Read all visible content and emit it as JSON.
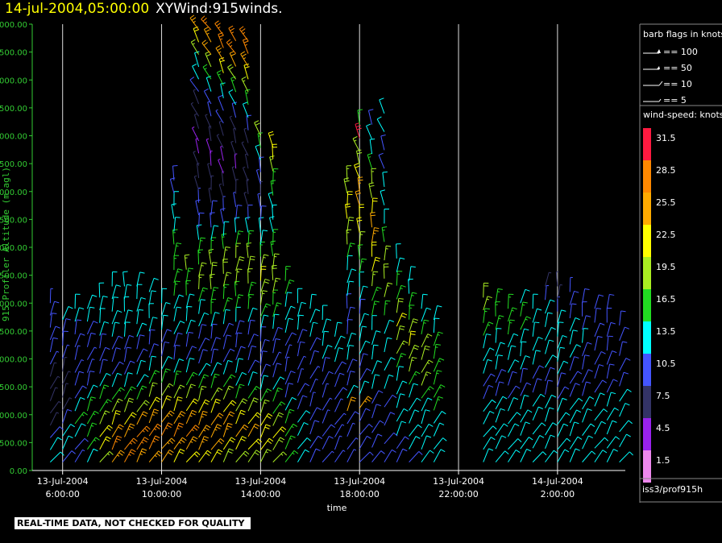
{
  "header": {
    "datetime": "14-jul-2004,05:00:00",
    "product": "XYWind:915winds."
  },
  "colors": {
    "background": "#000000",
    "title_date": "#ffff00",
    "y_axis": "#33cc33",
    "axis": "#ffffff"
  },
  "chart_data": {
    "type": "scatter",
    "subtype": "wind-barbs",
    "xlabel": "time",
    "ylabel": "915 Profiler Altitude (m agl)",
    "ylim": [
      0,
      8000
    ],
    "y_ticks": [
      "0.00",
      "500.00",
      "1000.00",
      "1500.00",
      "2000.00",
      "2500.00",
      "3000.00",
      "3500.00",
      "4000.00",
      "4500.00",
      "5000.00",
      "5500.00",
      "6000.00",
      "6500.00",
      "7000.00",
      "7500.00",
      "8000.00"
    ],
    "x_ticks": [
      {
        "date": "13-Jul-2004",
        "time": "6:00:00"
      },
      {
        "date": "13-Jul-2004",
        "time": "10:00:00"
      },
      {
        "date": "13-Jul-2004",
        "time": "14:00:00"
      },
      {
        "date": "13-Jul-2004",
        "time": "18:00:00"
      },
      {
        "date": "13-Jul-2004",
        "time": "22:00:00"
      },
      {
        "date": "14-Jul-2004",
        "time": "2:00:00"
      }
    ],
    "xlim": [
      "2004-07-13 05:00",
      "2004-07-14 05:00"
    ],
    "vertical_grid_at_ticks": true,
    "wind_columns": [
      {
        "t": "2004-07-13 05:30",
        "top": 3000,
        "speed": [
          12,
          12,
          11,
          6,
          6,
          7,
          7,
          8,
          9,
          10,
          11,
          11,
          10,
          9
        ]
      },
      {
        "t": "2004-07-13 06:00",
        "top": 2700,
        "speed": [
          11,
          12,
          13,
          10,
          8,
          7,
          7,
          8,
          9,
          10,
          11,
          12
        ]
      },
      {
        "t": "2004-07-13 06:30",
        "top": 2900,
        "speed": [
          9,
          11,
          14,
          15,
          13,
          11,
          10,
          9,
          9,
          10,
          11,
          12,
          13
        ]
      },
      {
        "t": "2004-07-13 07:00",
        "top": 2900,
        "speed": [
          13,
          16,
          17,
          17,
          15,
          12,
          10,
          9,
          9,
          10,
          11,
          12,
          12
        ]
      },
      {
        "t": "2004-07-13 07:30",
        "top": 3100,
        "speed": [
          19,
          22,
          21,
          19,
          17,
          15,
          12,
          10,
          10,
          11,
          12,
          12,
          13,
          14
        ]
      },
      {
        "t": "2004-07-13 08:00",
        "top": 3300,
        "speed": [
          25,
          27,
          24,
          22,
          19,
          16,
          13,
          11,
          10,
          11,
          12,
          12,
          13,
          14,
          12
        ]
      },
      {
        "t": "2004-07-13 08:30",
        "top": 3300,
        "speed": [
          27,
          28,
          26,
          23,
          20,
          17,
          14,
          11,
          10,
          11,
          12,
          13,
          13,
          13,
          12
        ]
      },
      {
        "t": "2004-07-13 09:00",
        "top": 3300,
        "speed": [
          26,
          28,
          27,
          24,
          20,
          17,
          14,
          12,
          10,
          11,
          12,
          12,
          13,
          13,
          12
        ]
      },
      {
        "t": "2004-07-13 09:30",
        "top": 3200,
        "speed": [
          25,
          27,
          28,
          25,
          21,
          18,
          15,
          12,
          11,
          11,
          12,
          12,
          13,
          12
        ]
      },
      {
        "t": "2004-07-13 10:00",
        "top": 3000,
        "speed": [
          24,
          26,
          27,
          25,
          22,
          18,
          15,
          12,
          11,
          11,
          12,
          12,
          12
        ]
      },
      {
        "t": "2004-07-13 10:30",
        "top": 5200,
        "speed": [
          23,
          26,
          27,
          25,
          22,
          18,
          15,
          13,
          11,
          11,
          12,
          13,
          14,
          15,
          16,
          17,
          17,
          15,
          14,
          13,
          12,
          11,
          10
        ]
      },
      {
        "t": "2004-07-13 11:00",
        "top": 3600,
        "speed": [
          22,
          25,
          27,
          26,
          23,
          19,
          16,
          13,
          11,
          11,
          12,
          13,
          14,
          15,
          17,
          18
        ]
      },
      {
        "t": "2004-07-13 11:30",
        "top": 7900,
        "speed": [
          22,
          25,
          26,
          25,
          22,
          19,
          16,
          13,
          11,
          10,
          11,
          13,
          14,
          16,
          18,
          19,
          17,
          15,
          13,
          11,
          10,
          9,
          8,
          7,
          6,
          5,
          5,
          6,
          7,
          8,
          10,
          12,
          14,
          18,
          22,
          25
        ]
      },
      {
        "t": "2004-07-13 12:00",
        "top": 7900,
        "speed": [
          21,
          24,
          26,
          24,
          22,
          18,
          15,
          13,
          11,
          10,
          11,
          13,
          15,
          17,
          19,
          20,
          18,
          16,
          13,
          11,
          10,
          8,
          7,
          6,
          5,
          5,
          6,
          7,
          9,
          11,
          13,
          16,
          20,
          24,
          26,
          28
        ]
      },
      {
        "t": "2004-07-13 12:30",
        "top": 7800,
        "speed": [
          20,
          23,
          25,
          24,
          21,
          18,
          15,
          12,
          10,
          10,
          11,
          13,
          15,
          17,
          19,
          20,
          18,
          16,
          13,
          11,
          9,
          8,
          6,
          5,
          5,
          6,
          7,
          9,
          11,
          14,
          17,
          21,
          25,
          27,
          28
        ]
      },
      {
        "t": "2004-07-13 13:00",
        "top": 7700,
        "speed": [
          20,
          22,
          24,
          23,
          20,
          17,
          14,
          12,
          10,
          10,
          11,
          13,
          15,
          17,
          19,
          20,
          18,
          15,
          12,
          10,
          9,
          7,
          6,
          5,
          6,
          7,
          8,
          10,
          13,
          16,
          20,
          24,
          27,
          28
        ]
      },
      {
        "t": "2004-07-13 13:30",
        "top": 7700,
        "speed": [
          20,
          22,
          24,
          23,
          20,
          17,
          14,
          11,
          10,
          10,
          11,
          13,
          15,
          17,
          19,
          20,
          18,
          15,
          12,
          10,
          8,
          7,
          6,
          6,
          7,
          8,
          10,
          12,
          15,
          19,
          23,
          26,
          28,
          27
        ]
      },
      {
        "t": "2004-07-13 14:00",
        "top": 6000,
        "speed": [
          19,
          21,
          23,
          22,
          19,
          16,
          13,
          11,
          10,
          10,
          11,
          14,
          16,
          18,
          20,
          21,
          19,
          17,
          14,
          12,
          10,
          9,
          8,
          9,
          11,
          13,
          16,
          20
        ]
      },
      {
        "t": "2004-07-13 14:30",
        "top": 5800,
        "speed": [
          18,
          20,
          21,
          20,
          17,
          15,
          12,
          10,
          9,
          10,
          11,
          13,
          15,
          17,
          19,
          20,
          19,
          17,
          15,
          13,
          12,
          13,
          15,
          17,
          19,
          21,
          23
        ]
      },
      {
        "t": "2004-07-13 15:00",
        "top": 3400,
        "speed": [
          15,
          17,
          17,
          15,
          13,
          11,
          10,
          9,
          9,
          10,
          12,
          13,
          14,
          15,
          16
        ]
      },
      {
        "t": "2004-07-13 15:30",
        "top": 3000,
        "speed": [
          12,
          13,
          13,
          12,
          11,
          10,
          9,
          9,
          10,
          11,
          12,
          13,
          13
        ]
      },
      {
        "t": "2004-07-13 16:00",
        "top": 2900,
        "speed": [
          10,
          11,
          11,
          10,
          9,
          9,
          9,
          10,
          11,
          12,
          13,
          13
        ]
      },
      {
        "t": "2004-07-13 16:30",
        "top": 2700,
        "speed": [
          9,
          10,
          10,
          9,
          9,
          9,
          10,
          11,
          12,
          12,
          13,
          14
        ]
      },
      {
        "t": "2004-07-13 17:00",
        "top": 2400,
        "speed": [
          9,
          9,
          9,
          9,
          9,
          10,
          11,
          11,
          12,
          12,
          13
        ]
      },
      {
        "t": "2004-07-13 17:30",
        "top": 5200,
        "speed": [
          9,
          9,
          9,
          10,
          24,
          12,
          11,
          11,
          12,
          12,
          11,
          10,
          11,
          12,
          13,
          14,
          16,
          18,
          20,
          22,
          21,
          20,
          19
        ]
      },
      {
        "t": "2004-07-13 18:00",
        "top": 6200,
        "speed": [
          10,
          10,
          10,
          10,
          26,
          12,
          11,
          11,
          12,
          13,
          12,
          11,
          12,
          13,
          15,
          17,
          19,
          21,
          23,
          24,
          25,
          22,
          20,
          18,
          32,
          16
        ]
      },
      {
        "t": "2004-07-13 18:30",
        "top": 6200,
        "speed": [
          10,
          10,
          10,
          11,
          11,
          12,
          12,
          12,
          13,
          14,
          15,
          17,
          19,
          21,
          23,
          25,
          24,
          22,
          20,
          18,
          15,
          13,
          12,
          11
        ]
      },
      {
        "t": "2004-07-13 19:00",
        "top": 6400,
        "speed": [
          11,
          11,
          11,
          11,
          12,
          12,
          13,
          14,
          16,
          18,
          20,
          18,
          16,
          14,
          13,
          12,
          11,
          11,
          12,
          13
        ]
      },
      {
        "t": "2004-07-13 19:30",
        "top": 3800,
        "speed": [
          11,
          11,
          12,
          12,
          12,
          13,
          14,
          16,
          18,
          20,
          22,
          20,
          17,
          15,
          13,
          12
        ]
      },
      {
        "t": "2004-07-13 20:00",
        "top": 3400,
        "speed": [
          11,
          12,
          12,
          12,
          13,
          14,
          16,
          18,
          20,
          21,
          20,
          17,
          15,
          13,
          12
        ]
      },
      {
        "t": "2004-07-13 20:30",
        "top": 2900,
        "speed": [
          12,
          12,
          13,
          13,
          14,
          16,
          18,
          19,
          20,
          18,
          16,
          14,
          13
        ]
      },
      {
        "t": "2004-07-13 21:00",
        "top": 2700,
        "speed": [
          12,
          12,
          13,
          14,
          15,
          16,
          17,
          17,
          16,
          15,
          14,
          13
        ]
      },
      {
        "t": "2004-07-13 23:00",
        "top": 3100,
        "speed": [
          12,
          12,
          13,
          13,
          12,
          11,
          11,
          12,
          13,
          14,
          15,
          16,
          18,
          20
        ]
      },
      {
        "t": "2004-07-13 23:30",
        "top": 3000,
        "speed": [
          12,
          13,
          13,
          13,
          12,
          11,
          11,
          12,
          13,
          14,
          15,
          16,
          17
        ]
      },
      {
        "t": "2004-07-14 00:00",
        "top": 2900,
        "speed": [
          13,
          13,
          13,
          13,
          12,
          11,
          11,
          12,
          13,
          14,
          15,
          16,
          15
        ]
      },
      {
        "t": "2004-07-14 00:30",
        "top": 3000,
        "speed": [
          13,
          13,
          14,
          13,
          12,
          11,
          11,
          12,
          13,
          14,
          15,
          15,
          14
        ]
      },
      {
        "t": "2004-07-14 01:00",
        "top": 2900,
        "speed": [
          13,
          14,
          14,
          13,
          12,
          11,
          11,
          12,
          13,
          14,
          14,
          14
        ]
      },
      {
        "t": "2004-07-14 01:30",
        "top": 3300,
        "speed": [
          13,
          14,
          14,
          13,
          12,
          11,
          11,
          12,
          13,
          14,
          14,
          13,
          9,
          8
        ]
      },
      {
        "t": "2004-07-14 02:00",
        "top": 3300,
        "speed": [
          13,
          14,
          14,
          13,
          12,
          11,
          11,
          12,
          12,
          13,
          13,
          12,
          9,
          7,
          6
        ]
      },
      {
        "t": "2004-07-14 02:30",
        "top": 3200,
        "speed": [
          12,
          14,
          14,
          13,
          12,
          11,
          11,
          11,
          12,
          12,
          12,
          11,
          10,
          9
        ]
      },
      {
        "t": "2004-07-14 03:00",
        "top": 3000,
        "speed": [
          12,
          13,
          14,
          13,
          12,
          11,
          11,
          11,
          11,
          12,
          11,
          10,
          10
        ]
      },
      {
        "t": "2004-07-14 03:30",
        "top": 2900,
        "speed": [
          12,
          13,
          13,
          13,
          12,
          11,
          11,
          11,
          11,
          11,
          10,
          10
        ]
      },
      {
        "t": "2004-07-14 04:00",
        "top": 2900,
        "speed": [
          12,
          13,
          13,
          13,
          12,
          11,
          11,
          11,
          11,
          11,
          10,
          10
        ]
      },
      {
        "t": "2004-07-14 04:30",
        "top": 2600,
        "speed": [
          12,
          13,
          13,
          12,
          12,
          11,
          11,
          11,
          11,
          11
        ]
      }
    ]
  },
  "legend": {
    "barb_title": "barb flags in knots",
    "barb_items": [
      "== 100",
      "== 50",
      "== 10",
      "== 5"
    ],
    "speed_title": "wind-speed: knots",
    "speed_bins": [
      {
        "label": "31.5",
        "color": "#ff1a40"
      },
      {
        "label": "28.5",
        "color": "#ff8800"
      },
      {
        "label": "25.5",
        "color": "#ffaa00"
      },
      {
        "label": "22.5",
        "color": "#ffff00"
      },
      {
        "label": "19.5",
        "color": "#aaee22"
      },
      {
        "label": "16.5",
        "color": "#22dd22"
      },
      {
        "label": "13.5",
        "color": "#00ffff"
      },
      {
        "label": "10.5",
        "color": "#4455ff"
      },
      {
        "label": "7.5",
        "color": "#333366"
      },
      {
        "label": "4.5",
        "color": "#9922ee"
      },
      {
        "label": "1.5",
        "color": "#ee88ee"
      }
    ],
    "station": "iss3/prof915h"
  },
  "footer": {
    "qc_notice": "REAL-TIME DATA, NOT CHECKED FOR QUALITY"
  }
}
